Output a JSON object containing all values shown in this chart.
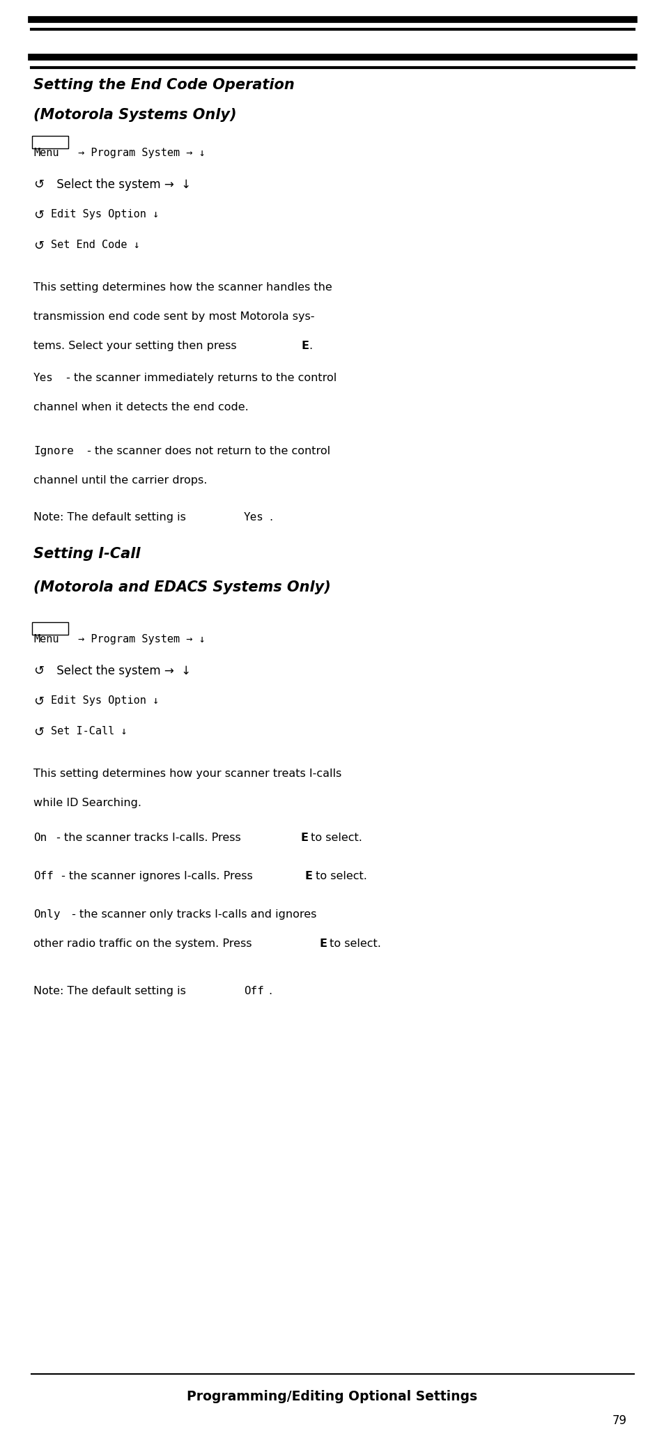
{
  "bg_color": "#ffffff",
  "section1_title_line1": "Setting the End Code Operation",
  "section1_title_line2": "(Motorola Systems Only)",
  "section2_title_line1": "Setting I-Call",
  "section2_title_line2": "(Motorola and EDACS Systems Only)",
  "footer_text": "Programming/Editing Optional Settings",
  "page_number": "79",
  "fig_width": 9.54,
  "fig_height": 20.84,
  "dpi": 100
}
